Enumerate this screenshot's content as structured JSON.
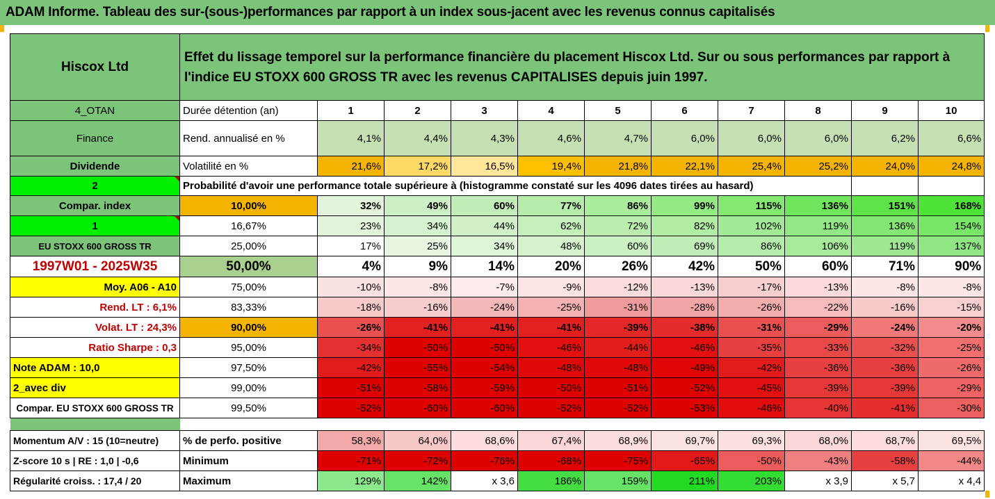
{
  "title": "ADAM Informe. Tableau des sur-(sous-)performances par rapport à un index sous-jacent avec les revenus connus capitalisés",
  "header": {
    "company": "Hiscox Ltd",
    "description": "Effet du lissage temporel sur la performance financière du placement Hiscox Ltd. Sur ou sous performances par rapport à l'indice EU STOXX 600 GROSS TR avec les revenus CAPITALISES depuis juin 1997."
  },
  "rows": {
    "holding": {
      "left": "4_OTAN",
      "label": "Durée détention (an)",
      "values": [
        "1",
        "2",
        "3",
        "4",
        "5",
        "6",
        "7",
        "8",
        "9",
        "10"
      ]
    },
    "return": {
      "left": "Finance",
      "label": "Rend. annualisé en %",
      "values": [
        "4,1%",
        "4,4%",
        "4,3%",
        "4,6%",
        "4,7%",
        "6,0%",
        "6,0%",
        "6,0%",
        "6,2%",
        "6,6%"
      ]
    },
    "volatility": {
      "left": "Dividende",
      "label": "Volatilité en %",
      "values": [
        "21,6%",
        "17,2%",
        "16,5%",
        "19,4%",
        "21,8%",
        "22,1%",
        "25,4%",
        "25,2%",
        "24,0%",
        "24,8%"
      ]
    },
    "prob_header": {
      "left": "2",
      "label": "Probabilité d'avoir une performance totale supérieure à (histogramme constaté sur les 4096 dates tirées au hasard)"
    }
  },
  "prob_rows": [
    {
      "left": "Compar. index",
      "pct": "10,00%",
      "values": [
        "32%",
        "49%",
        "60%",
        "77%",
        "86%",
        "99%",
        "115%",
        "136%",
        "151%",
        "168%"
      ]
    },
    {
      "left": "1",
      "pct": "16,67%",
      "values": [
        "23%",
        "34%",
        "44%",
        "62%",
        "72%",
        "82%",
        "102%",
        "119%",
        "136%",
        "154%"
      ]
    },
    {
      "left": "EU STOXX 600 GROSS TR",
      "pct": "25,00%",
      "values": [
        "17%",
        "25%",
        "34%",
        "48%",
        "60%",
        "69%",
        "86%",
        "106%",
        "119%",
        "137%"
      ]
    },
    {
      "left": "1997W01 - 2025W35",
      "pct": "50,00%",
      "values": [
        "4%",
        "9%",
        "14%",
        "20%",
        "26%",
        "42%",
        "50%",
        "60%",
        "71%",
        "90%"
      ]
    },
    {
      "left": "Moy. A06 - A10",
      "pct": "75,00%",
      "values": [
        "-10%",
        "-8%",
        "-7%",
        "-9%",
        "-12%",
        "-13%",
        "-17%",
        "-13%",
        "-8%",
        "-8%"
      ]
    },
    {
      "left": "Rend. LT :   6,1%",
      "pct": "83,33%",
      "values": [
        "-18%",
        "-16%",
        "-24%",
        "-25%",
        "-31%",
        "-28%",
        "-26%",
        "-22%",
        "-16%",
        "-15%"
      ]
    },
    {
      "left": "Volat. LT :   24,3%",
      "pct": "90,00%",
      "values": [
        "-26%",
        "-41%",
        "-41%",
        "-41%",
        "-39%",
        "-38%",
        "-31%",
        "-29%",
        "-24%",
        "-20%"
      ]
    },
    {
      "left": "Ratio Sharpe :   0,3",
      "pct": "95,00%",
      "values": [
        "-34%",
        "-50%",
        "-50%",
        "-46%",
        "-44%",
        "-46%",
        "-35%",
        "-33%",
        "-32%",
        "-25%"
      ]
    },
    {
      "left": "Note ADAM : 10,0",
      "pct": "97,50%",
      "values": [
        "-42%",
        "-55%",
        "-54%",
        "-48%",
        "-48%",
        "-49%",
        "-42%",
        "-36%",
        "-36%",
        "-26%"
      ]
    },
    {
      "left": "2_avec div",
      "pct": "99,00%",
      "values": [
        "-51%",
        "-58%",
        "-59%",
        "-50%",
        "-51%",
        "-52%",
        "-45%",
        "-39%",
        "-39%",
        "-29%"
      ]
    },
    {
      "left": "Compar. EU STOXX 600 GROSS TR",
      "pct": "99,50%",
      "values": [
        "-52%",
        "-60%",
        "-60%",
        "-52%",
        "-52%",
        "-53%",
        "-46%",
        "-40%",
        "-41%",
        "-30%"
      ]
    }
  ],
  "stats_rows": [
    {
      "left": "Momentum A/V : 15 (10=neutre)",
      "label": "% de perfo. positive",
      "values": [
        "58,3%",
        "64,0%",
        "68,6%",
        "67,4%",
        "68,9%",
        "69,7%",
        "69,3%",
        "68,0%",
        "68,7%",
        "69,5%"
      ]
    },
    {
      "left": "Z-score 10 s  |  RE : 1,0  |  -0,6",
      "label": "Minimum",
      "values": [
        "-71%",
        "-72%",
        "-76%",
        "-68%",
        "-75%",
        "-65%",
        "-50%",
        "-43%",
        "-58%",
        "-44%"
      ]
    },
    {
      "left": "Régularité croiss. : 17,4 / 20",
      "label": "Maximum",
      "values": [
        "129%",
        "142%",
        "x 3,6",
        "186%",
        "159%",
        "211%",
        "203%",
        "x 3,9",
        "x 5,7",
        "x 4,4"
      ]
    }
  ],
  "colors": {
    "header_green": "#7cc47a",
    "return_row": [
      "#c6e0b4",
      "#c6e0b4",
      "#c6e0b4",
      "#c6e0b4",
      "#c6e0b4",
      "#c6e0b4",
      "#c6e0b4",
      "#c6e0b4",
      "#c6e0b4",
      "#c6e0b4"
    ],
    "volatility_row": [
      "#f5b400",
      "#ffd966",
      "#ffe699",
      "#ffc000",
      "#f5b400",
      "#f5b400",
      "#f5b400",
      "#f5b400",
      "#f5b400",
      "#f5b400"
    ],
    "prob_rows": [
      [
        "#e2f5dc",
        "#ccefc5",
        "#c1eeb8",
        "#b6edaa",
        "#a9ec9b",
        "#96ea86",
        "#85e873",
        "#6fe65c",
        "#5ee449",
        "#4fe33a"
      ],
      [
        "#e2f5dc",
        "#d5f2ce",
        "#cff0c6",
        "#c4eeba",
        "#bbedaf",
        "#b1ec a4",
        "#a2ea95",
        "#92e884",
        "#85e773",
        "#7ae667"
      ],
      [
        "#ffffff",
        "#e6f6e1",
        "#dff5d8",
        "#d5f2cd",
        "#cbf0c2",
        "#c1eeb8",
        "#b4eca9",
        "#a6ea9a",
        "#9ee891",
        "#90e682"
      ],
      [
        "#ffffff",
        "#ffffff",
        "#ffffff",
        "#ffffff",
        "#ffffff",
        "#ffffff",
        "#ffffff",
        "#ffffff",
        "#ffffff",
        "#ffffff"
      ],
      [
        "#fbe2e2",
        "#fde6e6",
        "#fdeaea",
        "#fde4e4",
        "#fadcdc",
        "#f9d8d8",
        "#f8cfcf",
        "#fadada",
        "#fde6e6",
        "#fde6e6"
      ],
      [
        "#f7c9c9",
        "#f8cdcd",
        "#f5b8b8",
        "#f4b2b2",
        "#f09b9b",
        "#f2a5a5",
        "#f3adad",
        "#f6bcbc",
        "#f8cbcb",
        "#f9d0d0"
      ],
      [
        "#ea5050",
        "#e32020",
        "#e32020",
        "#e32020",
        "#e42828",
        "#e52c2c",
        "#ea5050",
        "#ec5c5c",
        "#f07878",
        "#f38c8c"
      ],
      [
        "#e43030",
        "#e00000",
        "#e00000",
        "#e21010",
        "#e31c1c",
        "#e21010",
        "#e84040",
        "#e94848",
        "#ea5050",
        "#f07070"
      ],
      [
        "#e21c1c",
        "#e00000",
        "#e00000",
        "#e00808",
        "#e00808",
        "#e00404",
        "#e21c1c",
        "#e84040",
        "#e84040",
        "#ef6b6b"
      ],
      [
        "#e00000",
        "#e00000",
        "#e00000",
        "#e00000",
        "#e00000",
        "#e00000",
        "#e21010",
        "#e73838",
        "#e73838",
        "#ee6464"
      ],
      [
        "#e00000",
        "#e00000",
        "#e00000",
        "#e00000",
        "#e00000",
        "#e00000",
        "#e20c0c",
        "#e73434",
        "#e62e2e",
        "#ed6060"
      ]
    ],
    "stats_rows": [
      [
        "#f3a8a8",
        "#f8c8c8",
        "#fcdcdc",
        "#fbd6d6",
        "#fcdede",
        "#fde2e2",
        "#fde0e0",
        "#fbd8d8",
        "#fcdcdc",
        "#fde2e2"
      ],
      [
        "#e00000",
        "#e00000",
        "#e00000",
        "#e00000",
        "#e00000",
        "#e31818",
        "#ec5c5c",
        "#f08080",
        "#e84040",
        "#f28888"
      ],
      [
        "#8be88b",
        "#66e266",
        "#ffffff",
        "#44de44",
        "#66e266",
        "#22da22",
        "#33dc33",
        "#ffffff",
        "#ffffff",
        "#ffffff"
      ]
    ]
  }
}
